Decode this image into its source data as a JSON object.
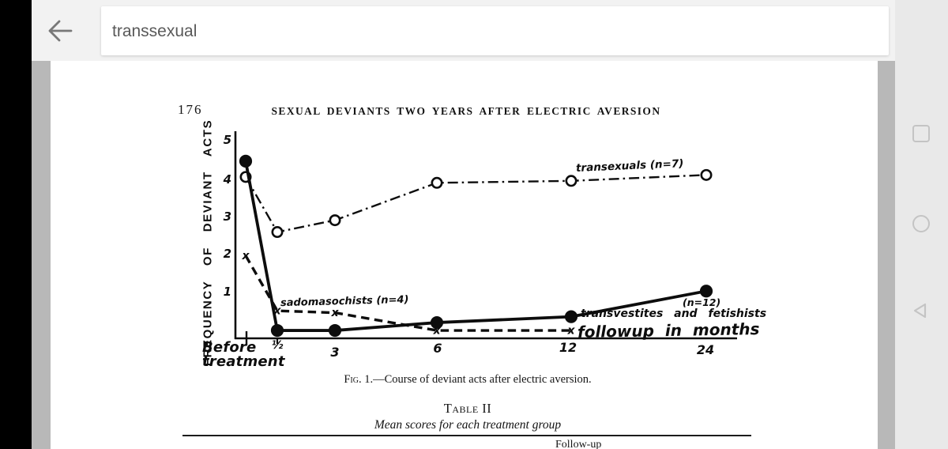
{
  "header": {
    "back_icon": "back-arrow",
    "search": {
      "value": "transsexual"
    }
  },
  "nav_bar": {
    "icons": [
      "recents-square",
      "home-circle",
      "back-triangle"
    ]
  },
  "colors": {
    "ink": "#0d0d0d",
    "viewer_bg": "#b8b8b8",
    "header_bg": "#f2f2f2",
    "nav_icon": "#c4c4c4",
    "search_text": "#595959",
    "side_strip": "#000000"
  },
  "doc": {
    "page_number": "176",
    "running_title": "SEXUAL DEVIANTS TWO YEARS AFTER ELECTRIC AVERSION",
    "figure_caption": {
      "label": "Fig. 1.",
      "text": "—Course of deviant acts after electric aversion."
    },
    "table": {
      "title": "Table II",
      "subtitle": "Mean scores for each treatment group",
      "partial_next_text": "Follow-up"
    }
  },
  "chart_data": {
    "type": "line",
    "title": "Fig. 1.—Course of deviant acts after electric aversion.",
    "ylabel": "FREQUENCY OF DEVIANT ACTS",
    "xlabel": "followup in months",
    "categories": [
      "Before treatment",
      "0.5",
      "3",
      "6",
      "12",
      "24"
    ],
    "x_display": {
      "before": [
        "Before",
        "treatment"
      ],
      "ticks": [
        "½",
        "3",
        "6",
        "12",
        "24"
      ]
    },
    "y_ticks": [
      "5",
      "4",
      "3",
      "2",
      "1"
    ],
    "ylim": [
      0,
      5.3
    ],
    "grid": false,
    "legend_position": "inline-annotations",
    "series": [
      {
        "name": "transexuals (n=7)",
        "marker": "open-circle",
        "line_style": "dash-dot",
        "values": [
          4.1,
          2.7,
          3.0,
          3.95,
          4.0,
          4.15
        ]
      },
      {
        "name": "sadomasochists (n=4)",
        "marker": "x",
        "line_style": "dashed",
        "values": [
          2.1,
          0.7,
          0.65,
          0.2,
          0.2,
          null
        ]
      },
      {
        "name": "transvestites and fetishists (n=12)",
        "marker": "filled-circle",
        "line_style": "solid",
        "values": [
          4.5,
          0.2,
          0.2,
          0.4,
          0.55,
          1.2
        ]
      }
    ],
    "annotations": [
      "transexuals (n=7)",
      "sadomasochists (n=4)",
      "(n=12)",
      "transvestites  and  fetishists",
      "followup  in  months"
    ]
  }
}
